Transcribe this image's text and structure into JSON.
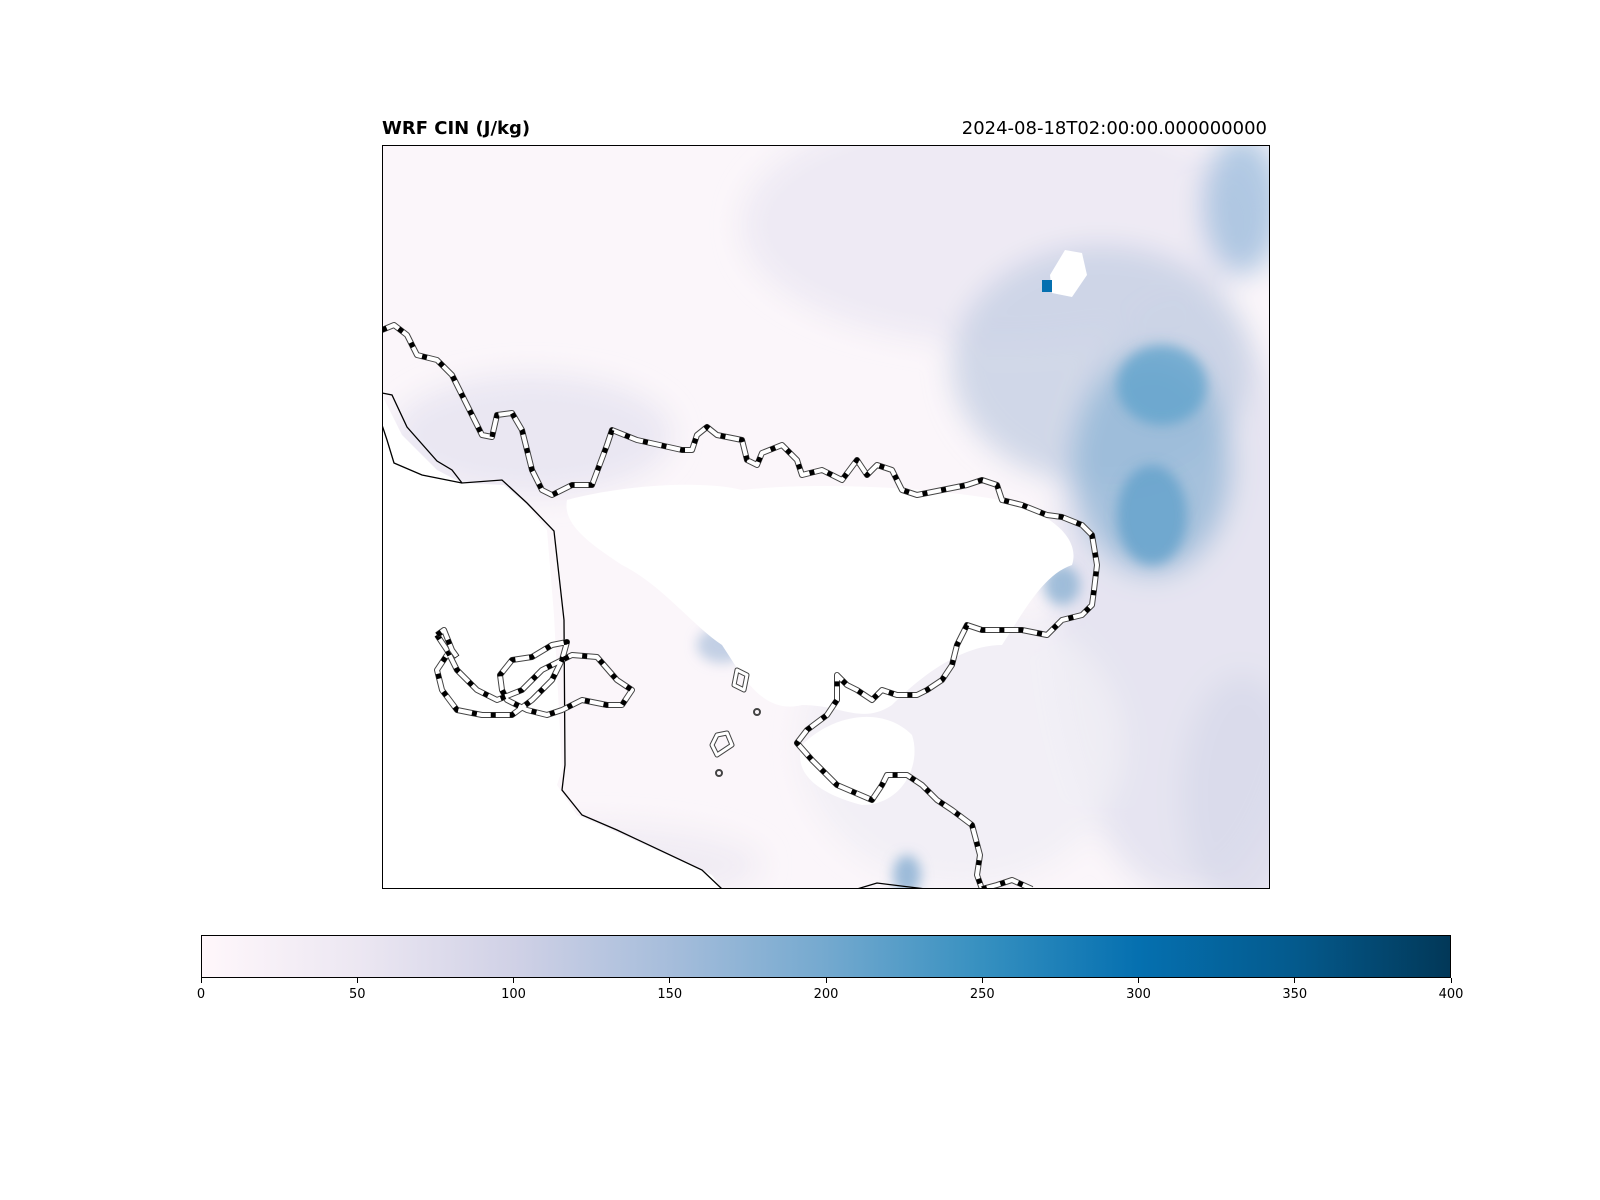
{
  "title": "WRF CIN (J/kg)",
  "timestamp": "2024-08-18T02:00:00.000000000",
  "colorbar": {
    "min": 0,
    "max": 400,
    "ticks": [
      "0",
      "50",
      "100",
      "150",
      "200",
      "250",
      "300",
      "350",
      "400"
    ],
    "colormap": "PuBu",
    "colors": [
      "#fff7fb",
      "#ece7f2",
      "#d0d1e6",
      "#a6bddb",
      "#74a9cf",
      "#3690c0",
      "#0570b0",
      "#045a8d",
      "#023858"
    ]
  },
  "map": {
    "field": "CIN",
    "typical_value_range": [
      0,
      300
    ],
    "features": [
      "coastline",
      "state-border-dashed",
      "white-undefined-area"
    ]
  }
}
